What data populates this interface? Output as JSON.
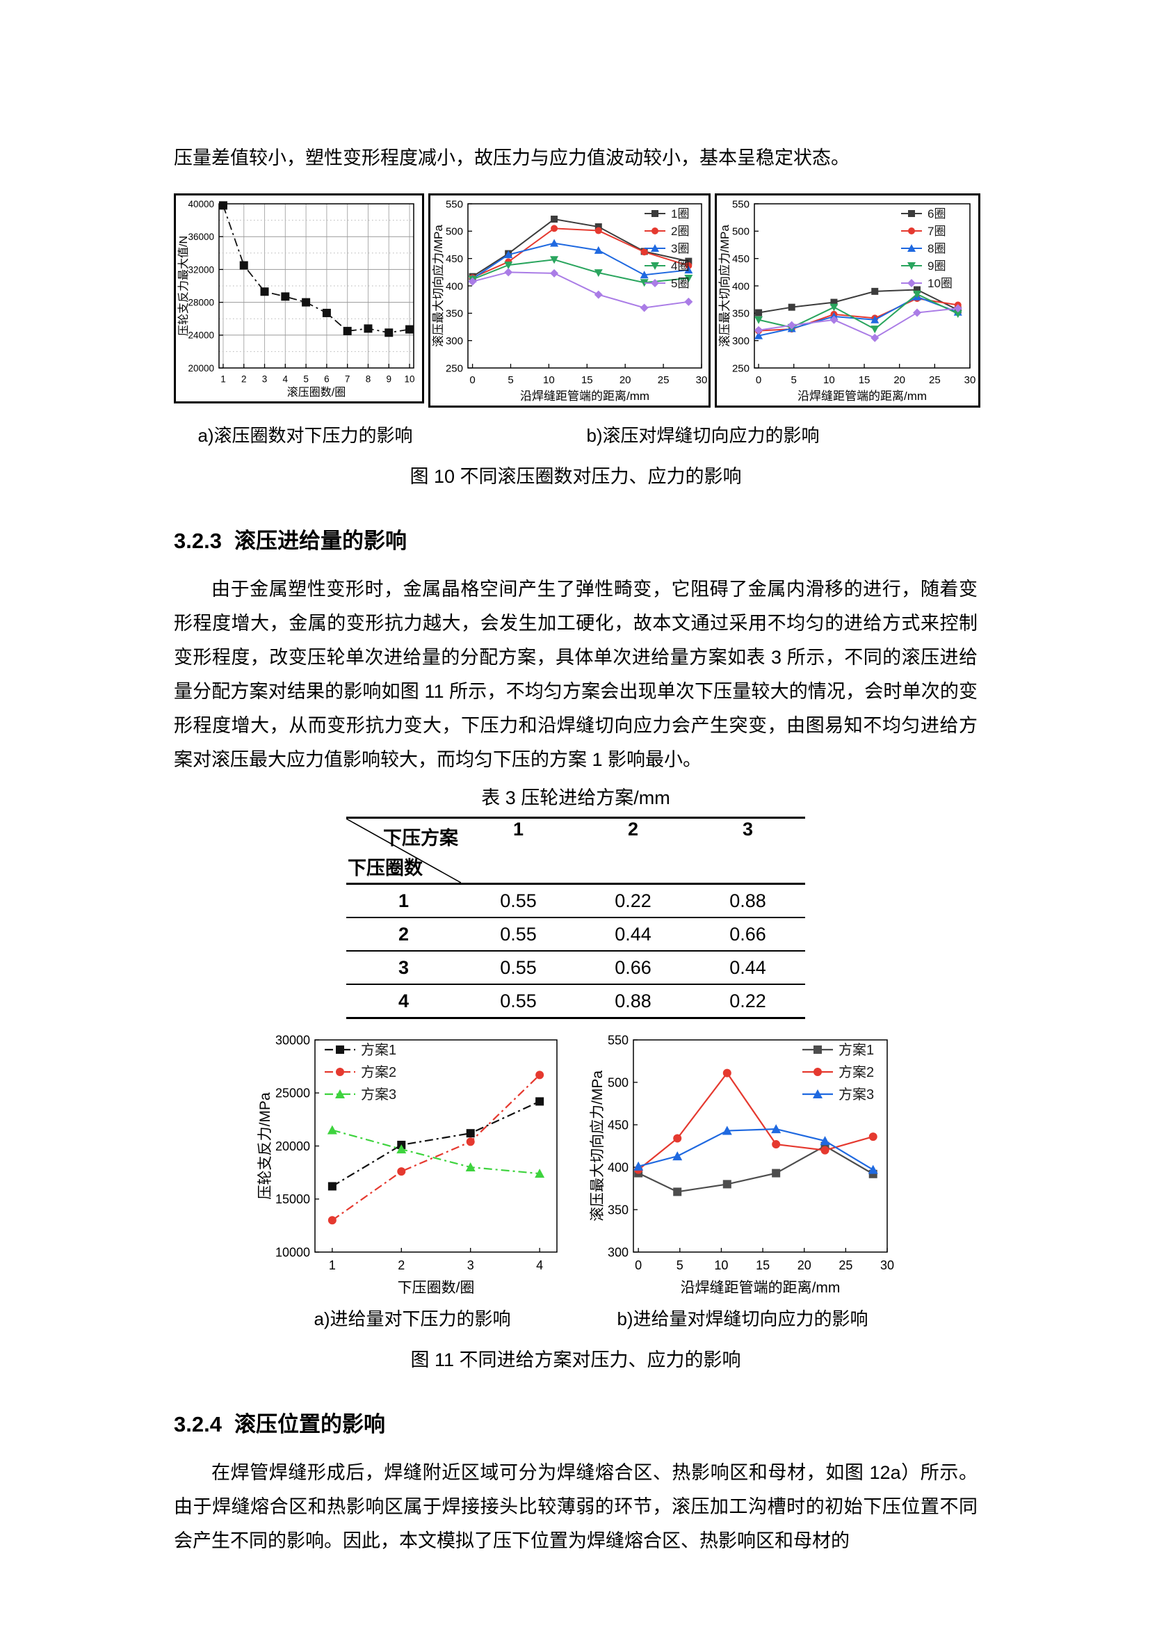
{
  "page": {
    "intro": "压量差值较小，塑性变形程度减小，故压力与应力值波动较小，基本呈稳定状态。",
    "fig10": {
      "caption_a": "a)滚压圈数对下压力的影响",
      "caption_b": "b)滚压对焊缝切向应力的影响",
      "caption": "图 10 不同滚压圈数对压力、应力的影响"
    },
    "sec323": {
      "number": "3.2.3",
      "title": "滚压进给量的影响",
      "paragraph": "由于金属塑性变形时，金属晶格空间产生了弹性畸变，它阻碍了金属内滑移的进行，随着变形程度增大，金属的变形抗力越大，会发生加工硬化，故本文通过采用不均匀的进给方式来控制变形程度，改变压轮单次进给量的分配方案，具体单次进给量方案如表 3 所示，不同的滚压进给量分配方案对结果的影响如图 11 所示，不均匀方案会出现单次下压量较大的情况，会时单次的变形程度增大，从而变形抗力变大，下压力和沿焊缝切向应力会产生突变，由图易知不均匀进给方案对滚压最大应力值影响较大，而均匀下压的方案 1 影响最小。"
    },
    "table3": {
      "title": "表 3 压轮进给方案/mm",
      "corner_top": "下压方案",
      "corner_bottom": "下压圈数",
      "columns": [
        "1",
        "2",
        "3"
      ],
      "rows": [
        [
          "1",
          "0.55",
          "0.22",
          "0.88"
        ],
        [
          "2",
          "0.55",
          "0.44",
          "0.66"
        ],
        [
          "3",
          "0.55",
          "0.66",
          "0.44"
        ],
        [
          "4",
          "0.55",
          "0.88",
          "0.22"
        ]
      ]
    },
    "fig11": {
      "caption_a": "a)进给量对下压力的影响",
      "caption_b": "b)进给量对焊缝切向应力的影响",
      "caption": "图 11 不同进给方案对压力、应力的影响"
    },
    "sec324": {
      "number": "3.2.4",
      "title": "滚压位置的影响",
      "paragraph": "在焊管焊缝形成后，焊缝附近区域可分为焊缝熔合区、热影响区和母材，如图 12a）所示。由于焊缝熔合区和热影响区属于焊接接头比较薄弱的环节，滚压加工沟槽时的初始下压位置不同会产生不同的影响。因此，本文模拟了压下位置为焊缝熔合区、热影响区和母材的"
    }
  },
  "chart_data": [
    {
      "id": "fig10a",
      "type": "line",
      "xlabel": "滚压圈数/圈",
      "ylabel": "压轮支反力最大值/N",
      "xlim": [
        0.8,
        10.2
      ],
      "ylim": [
        20000,
        40000
      ],
      "xticks": [
        1,
        2,
        3,
        4,
        5,
        6,
        7,
        8,
        9,
        10
      ],
      "yticks": [
        20000,
        24000,
        28000,
        32000,
        36000,
        40000
      ],
      "yminor": [
        22000,
        26000,
        30000,
        34000,
        38000
      ],
      "grid": true,
      "legend_pos": null,
      "series": [
        {
          "name": "",
          "color": "#111111",
          "marker": "square",
          "dash": "dashdot",
          "x": [
            1,
            2,
            3,
            4,
            5,
            6,
            7,
            8,
            9,
            10
          ],
          "y": [
            39800,
            32500,
            29300,
            28700,
            28000,
            26700,
            24500,
            24800,
            24300,
            24700
          ]
        }
      ]
    },
    {
      "id": "fig10b",
      "type": "line",
      "xlabel": "沿焊缝距管端的距离/mm",
      "ylabel": "滚压最大切向应力/MPa",
      "xlim": [
        -0.6,
        30
      ],
      "ylim": [
        250,
        550
      ],
      "xticks": [
        0,
        5,
        10,
        15,
        20,
        25,
        30
      ],
      "yticks": [
        250,
        300,
        350,
        400,
        450,
        500,
        550
      ],
      "grid": false,
      "legend_pos": "ne",
      "series": [
        {
          "name": "1圈",
          "color": "#3c3c3c",
          "marker": "square",
          "dash": "solid",
          "x": [
            0,
            4.7,
            10.7,
            16.5,
            22.5,
            28.3
          ],
          "y": [
            417,
            459,
            522,
            508,
            463,
            445
          ]
        },
        {
          "name": "2圈",
          "color": "#e5392f",
          "marker": "circle",
          "dash": "solid",
          "x": [
            0,
            4.7,
            10.7,
            16.5,
            22.5,
            28.3
          ],
          "y": [
            415,
            444,
            505,
            501,
            462,
            437
          ]
        },
        {
          "name": "3圈",
          "color": "#1f69e0",
          "marker": "triangle",
          "dash": "solid",
          "x": [
            0,
            4.7,
            10.7,
            16.5,
            22.5,
            28.3
          ],
          "y": [
            413,
            457,
            478,
            465,
            420,
            429
          ]
        },
        {
          "name": "4圈",
          "color": "#2aa55e",
          "marker": "triangle-down",
          "dash": "solid",
          "x": [
            0,
            4.7,
            10.7,
            16.5,
            22.5,
            28.3
          ],
          "y": [
            412,
            438,
            448,
            424,
            406,
            414
          ]
        },
        {
          "name": "5圈",
          "color": "#aa7ce6",
          "marker": "diamond",
          "dash": "solid",
          "x": [
            0,
            4.7,
            10.7,
            16.5,
            22.5,
            28.3
          ],
          "y": [
            408,
            425,
            423,
            384,
            360,
            371
          ]
        }
      ]
    },
    {
      "id": "fig10c",
      "type": "line",
      "xlabel": "沿焊缝距管端的距离/mm",
      "ylabel": "滚压最大切向应力/MPa",
      "xlim": [
        -0.6,
        30
      ],
      "ylim": [
        250,
        550
      ],
      "xticks": [
        0,
        5,
        10,
        15,
        20,
        25,
        30
      ],
      "yticks": [
        250,
        300,
        350,
        400,
        450,
        500,
        550
      ],
      "grid": false,
      "legend_pos": "ne",
      "series": [
        {
          "name": "6圈",
          "color": "#3c3c3c",
          "marker": "square",
          "dash": "solid",
          "x": [
            0,
            4.7,
            10.7,
            16.5,
            22.5,
            28.3
          ],
          "y": [
            351,
            361,
            370,
            390,
            393,
            356
          ]
        },
        {
          "name": "7圈",
          "color": "#e5392f",
          "marker": "circle",
          "dash": "solid",
          "x": [
            0,
            4.7,
            10.7,
            16.5,
            22.5,
            28.3
          ],
          "y": [
            318,
            321,
            348,
            341,
            377,
            365
          ]
        },
        {
          "name": "8圈",
          "color": "#1f69e0",
          "marker": "triangle",
          "dash": "solid",
          "x": [
            0,
            4.7,
            10.7,
            16.5,
            22.5,
            28.3
          ],
          "y": [
            309,
            322,
            344,
            338,
            380,
            352
          ]
        },
        {
          "name": "9圈",
          "color": "#2aa55e",
          "marker": "triangle-down",
          "dash": "solid",
          "x": [
            0,
            4.7,
            10.7,
            16.5,
            22.5,
            28.3
          ],
          "y": [
            338,
            324,
            361,
            321,
            385,
            349
          ]
        },
        {
          "name": "10圈",
          "color": "#aa7ce6",
          "marker": "diamond",
          "dash": "solid",
          "x": [
            0,
            4.7,
            10.7,
            16.5,
            22.5,
            28.3
          ],
          "y": [
            319,
            328,
            338,
            305,
            351,
            359
          ]
        }
      ]
    },
    {
      "id": "fig11a",
      "type": "line",
      "xlabel": "下压圈数/圈",
      "ylabel": "压轮支反力/MPa",
      "xlim": [
        0.75,
        4.25
      ],
      "ylim": [
        10000,
        30000
      ],
      "xticks": [
        1,
        2,
        3,
        4
      ],
      "yticks": [
        10000,
        15000,
        20000,
        25000,
        30000
      ],
      "grid": false,
      "legend_pos": "nw",
      "series": [
        {
          "name": "方案1",
          "color": "#111111",
          "marker": "square",
          "dash": "dashdot",
          "x": [
            1,
            2,
            3,
            4
          ],
          "y": [
            16200,
            20100,
            21200,
            24200
          ]
        },
        {
          "name": "方案2",
          "color": "#e5392f",
          "marker": "circle",
          "dash": "dashdot",
          "x": [
            1,
            2,
            3,
            4
          ],
          "y": [
            13000,
            17600,
            20400,
            26700
          ]
        },
        {
          "name": "方案3",
          "color": "#3ed33e",
          "marker": "triangle",
          "dash": "dashdot",
          "x": [
            1,
            2,
            3,
            4
          ],
          "y": [
            21500,
            19700,
            18000,
            17400
          ]
        }
      ]
    },
    {
      "id": "fig11b",
      "type": "line",
      "xlabel": "沿焊缝距管端的距离/mm",
      "ylabel": "滚压最大切向应力/MPa",
      "xlim": [
        -0.6,
        30
      ],
      "ylim": [
        300,
        550
      ],
      "xticks": [
        0,
        5,
        10,
        15,
        20,
        25,
        30
      ],
      "yticks": [
        300,
        350,
        400,
        450,
        500,
        550
      ],
      "grid": false,
      "legend_pos": "ne",
      "series": [
        {
          "name": "方案1",
          "color": "#4d4d4d",
          "marker": "square",
          "dash": "solid",
          "x": [
            0,
            4.7,
            10.7,
            16.6,
            22.5,
            28.3
          ],
          "y": [
            393,
            371,
            380,
            393,
            425,
            392
          ]
        },
        {
          "name": "方案2",
          "color": "#e5392f",
          "marker": "circle",
          "dash": "solid",
          "x": [
            0,
            4.7,
            10.7,
            16.6,
            22.5,
            28.3
          ],
          "y": [
            397,
            434,
            511,
            427,
            420,
            436
          ]
        },
        {
          "name": "方案3",
          "color": "#1f69e0",
          "marker": "triangle",
          "dash": "solid",
          "x": [
            0,
            4.7,
            10.7,
            16.6,
            22.5,
            28.3
          ],
          "y": [
            401,
            413,
            443,
            445,
            431,
            397
          ]
        }
      ]
    }
  ]
}
